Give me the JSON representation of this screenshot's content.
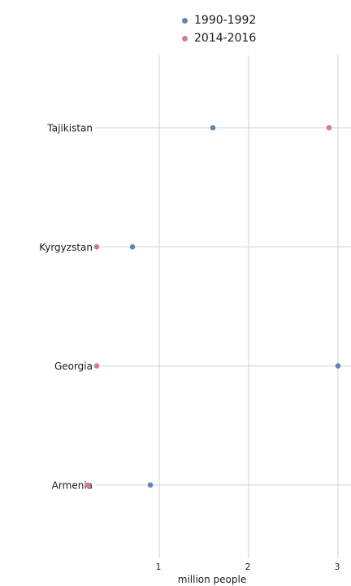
{
  "chart_data": {
    "type": "scatter",
    "categories": [
      "Tajikistan",
      "Kyrgyzstan",
      "Georgia",
      "Armenia"
    ],
    "series": [
      {
        "name": "1990-1992",
        "color": "#5f87b5",
        "values": [
          1.6,
          0.7,
          3.0,
          0.9
        ]
      },
      {
        "name": "2014-2016",
        "color": "#d27c8c",
        "values": [
          2.9,
          0.3,
          0.3,
          0.2
        ]
      }
    ],
    "xlabel": "million people",
    "ylabel": "",
    "xlim": [
      0.1,
      3.2
    ],
    "xticks": [
      1,
      2,
      3
    ],
    "xtick_labels": [
      "1",
      "2",
      "3"
    ],
    "grid": true,
    "legend_position": "top"
  }
}
